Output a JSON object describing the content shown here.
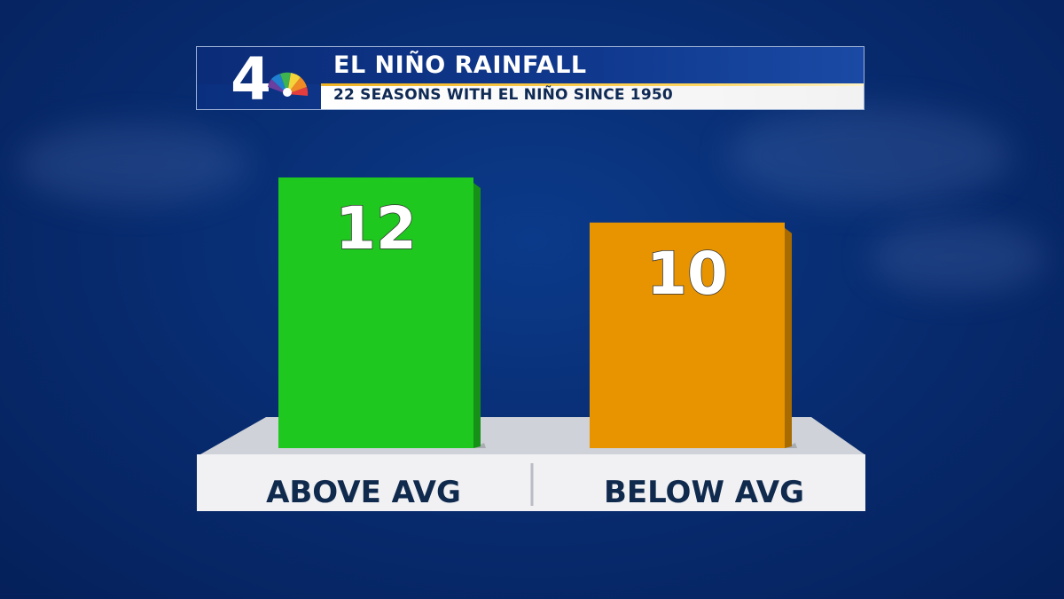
{
  "header": {
    "title": "EL NIÑO RAINFALL",
    "subtitle": "22 SEASONS WITH EL NIÑO SINCE 1950",
    "logo_text": "4"
  },
  "chart_data": {
    "type": "bar",
    "title": "EL NIÑO RAINFALL",
    "subtitle": "22 SEASONS WITH EL NIÑO SINCE 1950",
    "categories": [
      "ABOVE AVG",
      "BELOW AVG"
    ],
    "values": [
      12,
      10
    ],
    "colors": [
      "#1ec81e",
      "#e89400"
    ],
    "ylim": [
      0,
      12
    ],
    "grid": false,
    "legend": "none"
  },
  "colors": {
    "background": "#082d72",
    "accent_gold": "#f0b323",
    "label_text": "#102a4e"
  }
}
